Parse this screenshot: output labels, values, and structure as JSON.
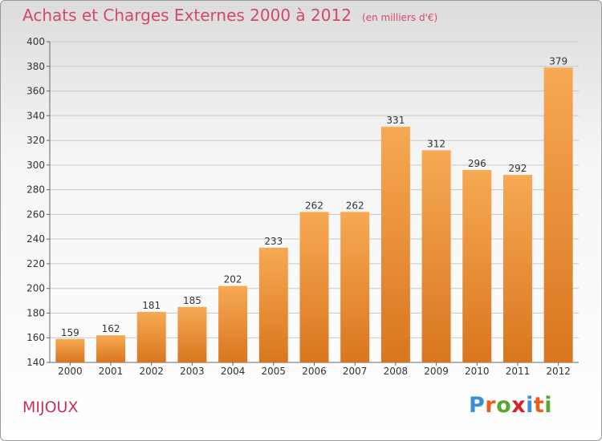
{
  "header": {
    "title": "Achats et Charges Externes 2000 à 2012",
    "unit": "(en milliers d'€)"
  },
  "footer": {
    "town": "MIJOUX",
    "logo_letters": [
      "P",
      "r",
      "o",
      "x",
      "i",
      "t",
      "i"
    ],
    "logo_colors": [
      "#3a8fd6",
      "#e8611c",
      "#56a82f",
      "#d6232a",
      "#3a8fd6",
      "#e8611c",
      "#56a82f"
    ]
  },
  "colors": {
    "bar_light": "#f7a953",
    "bar_dark": "#d9761f",
    "grid": "#c8c8c8",
    "axis_text": "#333333"
  },
  "chart_data": {
    "type": "bar",
    "title": "Achats et Charges Externes 2000 à 2012",
    "subtitle": "(en milliers d'€)",
    "categories": [
      "2000",
      "2001",
      "2002",
      "2003",
      "2004",
      "2005",
      "2006",
      "2007",
      "2008",
      "2009",
      "2010",
      "2011",
      "2012"
    ],
    "values": [
      159,
      162,
      181,
      185,
      202,
      233,
      262,
      262,
      331,
      312,
      296,
      292,
      379
    ],
    "ylim": [
      140,
      400
    ],
    "yticks": [
      140,
      160,
      180,
      200,
      220,
      240,
      260,
      280,
      300,
      320,
      340,
      360,
      380,
      400
    ],
    "grid": true,
    "xlabel": "",
    "ylabel": ""
  }
}
